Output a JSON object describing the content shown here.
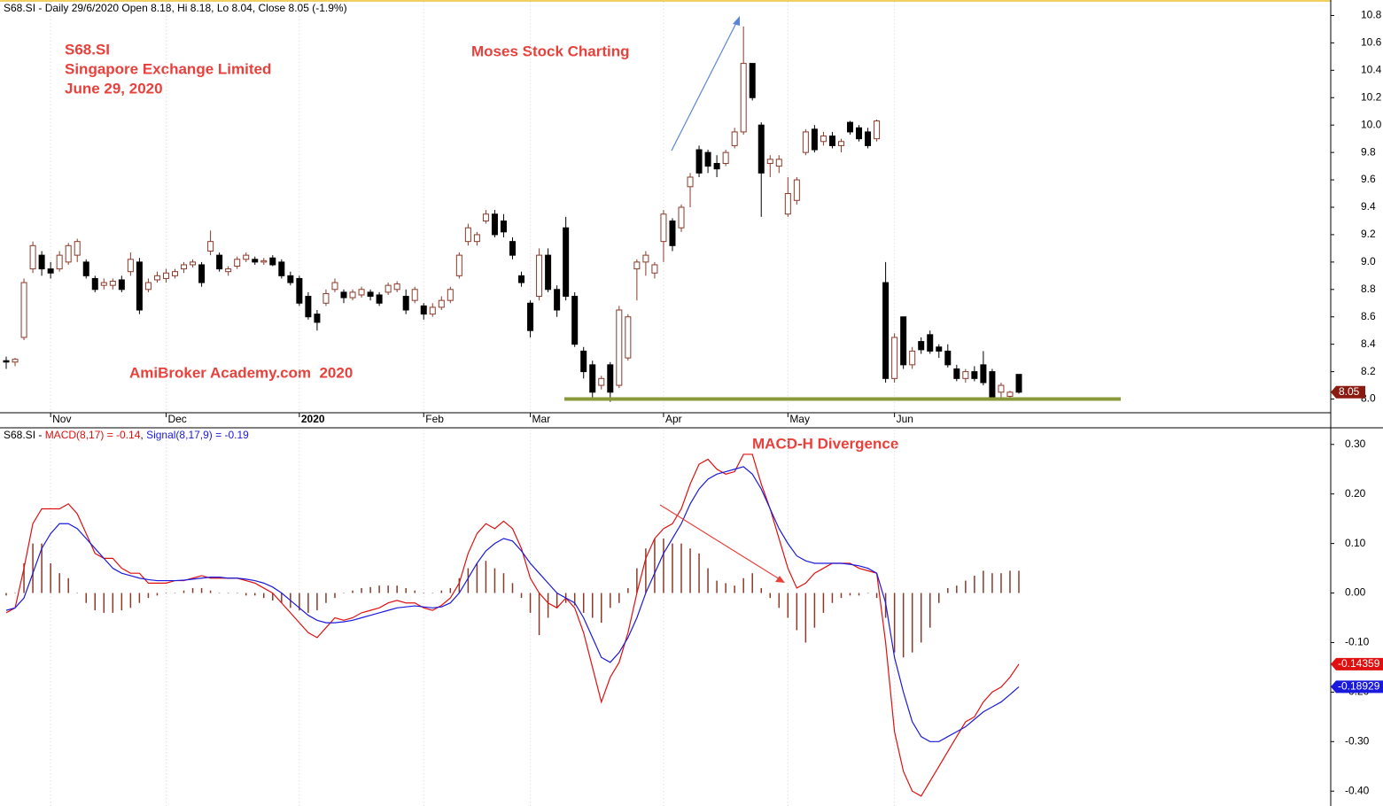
{
  "chart_data": [
    {
      "type": "candlestick",
      "title": "S68.SI - Daily 29/6/2020 Open 8.18, Hi 8.18, Lo 8.04, Close 8.05 (-1.9%)",
      "annotations": [
        "S68.SI",
        "Singapore Exchange Limited",
        "June 29, 2020",
        "Moses Stock Charting",
        "AmiBroker Academy.com  2020"
      ],
      "color_up": "#8b3a2a",
      "color_down": "#000000",
      "last_color": "#8b1a10",
      "ylim": [
        7.9,
        10.9
      ],
      "yticks": [
        {
          "value": 8,
          "label": "8.0"
        },
        8.2,
        8.4,
        8.6,
        8.8,
        {
          "value": 9,
          "label": "9.0"
        },
        9.2,
        9.4,
        9.6,
        9.8,
        {
          "value": 10,
          "label": "10.0"
        },
        10.2,
        10.4,
        10.6,
        10.8
      ],
      "xticks": [
        {
          "value": 5,
          "label": "Nov"
        },
        {
          "value": 18,
          "label": "Dec"
        },
        {
          "value": 33,
          "label": "2020",
          "bold": true
        },
        {
          "value": 47,
          "label": "Feb"
        },
        {
          "value": 59,
          "label": "Mar"
        },
        {
          "value": 74,
          "label": "Apr"
        },
        {
          "value": 88,
          "label": "May"
        },
        {
          "value": 100,
          "label": "Jun"
        }
      ],
      "ohlc": [
        [
          8.28,
          8.31,
          8.22,
          8.27
        ],
        [
          8.27,
          8.3,
          8.24,
          8.29
        ],
        [
          8.45,
          8.88,
          8.43,
          8.85
        ],
        [
          8.95,
          9.15,
          8.92,
          9.12
        ],
        [
          9.05,
          9.08,
          8.9,
          8.95
        ],
        [
          8.95,
          9.0,
          8.88,
          8.92
        ],
        [
          8.95,
          9.08,
          8.93,
          9.05
        ],
        [
          9.0,
          9.14,
          8.98,
          9.12
        ],
        [
          9.05,
          9.17,
          9.0,
          9.15
        ],
        [
          9.0,
          9.02,
          8.88,
          8.9
        ],
        [
          8.88,
          8.9,
          8.78,
          8.8
        ],
        [
          8.83,
          8.88,
          8.8,
          8.85
        ],
        [
          8.83,
          8.88,
          8.8,
          8.86
        ],
        [
          8.87,
          8.9,
          8.78,
          8.8
        ],
        [
          8.93,
          9.07,
          8.9,
          9.02
        ],
        [
          9.0,
          9.03,
          8.62,
          8.65
        ],
        [
          8.8,
          8.88,
          8.78,
          8.85
        ],
        [
          8.87,
          8.93,
          8.85,
          8.9
        ],
        [
          8.88,
          8.95,
          8.85,
          8.92
        ],
        [
          8.9,
          8.95,
          8.88,
          8.93
        ],
        [
          8.95,
          9.0,
          8.92,
          8.98
        ],
        [
          8.98,
          9.02,
          8.96,
          9.0
        ],
        [
          8.98,
          9.0,
          8.82,
          8.85
        ],
        [
          9.08,
          9.23,
          9.05,
          9.15
        ],
        [
          9.05,
          9.07,
          8.93,
          8.95
        ],
        [
          8.93,
          8.97,
          8.9,
          8.95
        ],
        [
          8.97,
          9.04,
          8.95,
          9.02
        ],
        [
          9.02,
          9.07,
          9.0,
          9.05
        ],
        [
          9.02,
          9.04,
          8.98,
          9.0
        ],
        [
          9.0,
          9.03,
          8.98,
          9.01
        ],
        [
          9.03,
          9.05,
          8.97,
          8.98
        ],
        [
          9.0,
          9.02,
          8.88,
          8.9
        ],
        [
          8.9,
          8.93,
          8.83,
          8.85
        ],
        [
          8.88,
          8.9,
          8.68,
          8.7
        ],
        [
          8.75,
          8.78,
          8.58,
          8.6
        ],
        [
          8.62,
          8.65,
          8.5,
          8.56
        ],
        [
          8.7,
          8.8,
          8.68,
          8.77
        ],
        [
          8.8,
          8.88,
          8.78,
          8.85
        ],
        [
          8.78,
          8.8,
          8.7,
          8.74
        ],
        [
          8.74,
          8.8,
          8.72,
          8.78
        ],
        [
          8.76,
          8.82,
          8.74,
          8.8
        ],
        [
          8.78,
          8.8,
          8.72,
          8.75
        ],
        [
          8.76,
          8.78,
          8.68,
          8.7
        ],
        [
          8.78,
          8.85,
          8.76,
          8.83
        ],
        [
          8.8,
          8.86,
          8.78,
          8.84
        ],
        [
          8.75,
          8.8,
          8.62,
          8.65
        ],
        [
          8.72,
          8.82,
          8.7,
          8.8
        ],
        [
          8.68,
          8.7,
          8.58,
          8.62
        ],
        [
          8.62,
          8.7,
          8.6,
          8.67
        ],
        [
          8.67,
          8.75,
          8.65,
          8.72
        ],
        [
          8.72,
          8.82,
          8.7,
          8.8
        ],
        [
          8.9,
          9.07,
          8.88,
          9.05
        ],
        [
          9.15,
          9.28,
          9.12,
          9.25
        ],
        [
          9.15,
          9.22,
          9.12,
          9.2
        ],
        [
          9.3,
          9.38,
          9.28,
          9.35
        ],
        [
          9.35,
          9.38,
          9.18,
          9.2
        ],
        [
          9.3,
          9.35,
          9.18,
          9.22
        ],
        [
          9.15,
          9.18,
          9.02,
          9.05
        ],
        [
          8.9,
          8.93,
          8.82,
          8.85
        ],
        [
          8.7,
          8.72,
          8.45,
          8.5
        ],
        [
          8.75,
          9.1,
          8.72,
          9.05
        ],
        [
          9.05,
          9.1,
          8.78,
          8.8
        ],
        [
          8.8,
          8.83,
          8.6,
          8.65
        ],
        [
          9.25,
          9.33,
          8.72,
          8.75
        ],
        [
          8.75,
          8.78,
          8.38,
          8.4
        ],
        [
          8.35,
          8.38,
          8.15,
          8.2
        ],
        [
          8.25,
          8.28,
          8.0,
          8.05
        ],
        [
          8.1,
          8.17,
          8.07,
          8.15
        ],
        [
          8.25,
          8.27,
          7.98,
          8.05
        ],
        [
          8.1,
          8.68,
          8.08,
          8.65
        ],
        [
          8.3,
          8.62,
          8.28,
          8.6
        ],
        [
          8.95,
          9.02,
          8.72,
          9.0
        ],
        [
          9.0,
          9.08,
          8.9,
          9.05
        ],
        [
          8.92,
          9.0,
          8.88,
          8.98
        ],
        [
          9.15,
          9.38,
          9.0,
          9.35
        ],
        [
          9.3,
          9.32,
          9.08,
          9.12
        ],
        [
          9.25,
          9.42,
          9.22,
          9.4
        ],
        [
          9.55,
          9.65,
          9.4,
          9.62
        ],
        [
          9.82,
          9.85,
          9.62,
          9.65
        ],
        [
          9.8,
          9.82,
          9.65,
          9.7
        ],
        [
          9.72,
          9.78,
          9.62,
          9.68
        ],
        [
          9.72,
          9.82,
          9.7,
          9.8
        ],
        [
          9.85,
          9.98,
          9.83,
          9.95
        ],
        [
          9.95,
          10.72,
          9.93,
          10.45
        ],
        [
          10.45,
          10.45,
          10.18,
          10.2
        ],
        [
          10.0,
          10.02,
          9.33,
          9.65
        ],
        [
          9.72,
          9.78,
          9.62,
          9.75
        ],
        [
          9.7,
          9.78,
          9.65,
          9.75
        ],
        [
          9.35,
          9.62,
          9.33,
          9.5
        ],
        [
          9.45,
          9.62,
          9.42,
          9.6
        ],
        [
          9.8,
          9.97,
          9.78,
          9.95
        ],
        [
          9.97,
          10.0,
          9.8,
          9.82
        ],
        [
          9.88,
          9.95,
          9.85,
          9.92
        ],
        [
          9.92,
          9.95,
          9.83,
          9.85
        ],
        [
          9.85,
          9.9,
          9.8,
          9.88
        ],
        [
          10.02,
          10.03,
          9.93,
          9.95
        ],
        [
          9.98,
          10.0,
          9.88,
          9.9
        ],
        [
          9.95,
          9.98,
          9.83,
          9.85
        ],
        [
          9.9,
          10.04,
          9.88,
          10.03
        ],
        [
          8.85,
          9.0,
          8.12,
          8.15
        ],
        [
          8.15,
          8.48,
          8.12,
          8.45
        ],
        [
          8.6,
          8.6,
          8.22,
          8.25
        ],
        [
          8.25,
          8.38,
          8.22,
          8.35
        ],
        [
          8.42,
          8.45,
          8.33,
          8.36
        ],
        [
          8.47,
          8.5,
          8.33,
          8.35
        ],
        [
          8.38,
          8.4,
          8.3,
          8.35
        ],
        [
          8.35,
          8.4,
          8.23,
          8.25
        ],
        [
          8.22,
          8.25,
          8.13,
          8.15
        ],
        [
          8.15,
          8.22,
          8.12,
          8.2
        ],
        [
          8.2,
          8.24,
          8.13,
          8.15
        ],
        [
          8.25,
          8.35,
          8.1,
          8.12
        ],
        [
          8.2,
          8.22,
          7.99,
          8.0
        ],
        [
          8.05,
          8.12,
          8.0,
          8.1
        ],
        [
          8.02,
          8.06,
          8.0,
          8.05
        ],
        [
          8.18,
          8.18,
          8.04,
          8.05
        ]
      ]
    },
    {
      "type": "macd",
      "title_parts": [
        {
          "text": "S68.SI - ",
          "color": "#000000"
        },
        {
          "text": "MACD(8,17) = -0.14",
          "color": "#e01010"
        },
        {
          "text": ", ",
          "color": "#000000"
        },
        {
          "text": "Signal(8,17,9) = -0.19",
          "color": "#1a1adc"
        }
      ],
      "annotation": "MACD-H Divergence",
      "ylim": [
        -0.43,
        0.33
      ],
      "yticks": [
        {
          "value": 0.3,
          "label": "0.30"
        },
        {
          "value": 0.2,
          "label": "0.20"
        },
        {
          "value": 0.1,
          "label": "0.10"
        },
        {
          "value": 0,
          "label": "0.00"
        },
        {
          "value": -0.1,
          "label": "-0.10"
        },
        {
          "value": -0.2,
          "label": "-0.20"
        },
        {
          "value": -0.3,
          "label": "-0.30"
        },
        {
          "value": -0.4,
          "label": "-0.40"
        }
      ],
      "histogram": {
        "color": "#8b3a2a",
        "values": [
          -0.005,
          0,
          0.06,
          0.1,
          0.1,
          0.06,
          0.04,
          0.03,
          0,
          -0.02,
          -0.035,
          -0.04,
          -0.04,
          -0.035,
          -0.03,
          -0.02,
          -0.01,
          -0.005,
          0,
          0,
          0.005,
          0.01,
          0.01,
          0.005,
          0,
          0,
          0,
          -0.005,
          -0.005,
          -0.01,
          -0.015,
          -0.02,
          -0.03,
          -0.035,
          -0.04,
          -0.035,
          -0.02,
          -0.01,
          0,
          0.005,
          0.01,
          0.012,
          0.015,
          0.015,
          0.015,
          0.01,
          0.005,
          0,
          0,
          0.005,
          0.01,
          0.03,
          0.05,
          0.06,
          0.065,
          0.05,
          0.04,
          0.02,
          -0.01,
          -0.04,
          -0.085,
          -0.05,
          -0.03,
          -0.02,
          -0.025,
          -0.04,
          -0.05,
          -0.06,
          -0.03,
          -0.02,
          0.01,
          0.05,
          0.09,
          0.11,
          0.11,
          0.1,
          0.1,
          0.09,
          0.08,
          0.05,
          0.025,
          0.02,
          0.015,
          0.03,
          0.04,
          0.01,
          -0.01,
          -0.03,
          -0.05,
          -0.075,
          -0.1,
          -0.07,
          -0.04,
          -0.02,
          -0.01,
          -0.005,
          -0.005,
          0,
          -0.01,
          -0.05,
          -0.12,
          -0.13,
          -0.12,
          -0.1,
          -0.07,
          -0.02,
          0.01,
          0.015,
          0.025,
          0.035,
          0.045,
          0.04,
          0.04,
          0.045,
          0.045
        ]
      },
      "series": [
        {
          "color": "#e01010",
          "values": [
            -0.04,
            -0.03,
            0.05,
            0.14,
            0.17,
            0.17,
            0.17,
            0.18,
            0.16,
            0.12,
            0.08,
            0.07,
            0.07,
            0.05,
            0.04,
            0.04,
            0.02,
            0.02,
            0.02,
            0.025,
            0.025,
            0.03,
            0.035,
            0.03,
            0.03,
            0.03,
            0.03,
            0.025,
            0.02,
            0.01,
            0,
            -0.02,
            -0.04,
            -0.06,
            -0.08,
            -0.09,
            -0.07,
            -0.05,
            -0.055,
            -0.05,
            -0.04,
            -0.035,
            -0.03,
            -0.02,
            -0.015,
            -0.02,
            -0.02,
            -0.03,
            -0.035,
            -0.025,
            -0.01,
            0.02,
            0.08,
            0.12,
            0.14,
            0.13,
            0.145,
            0.13,
            0.09,
            0.03,
            0,
            -0.02,
            -0.03,
            -0.01,
            -0.03,
            -0.08,
            -0.15,
            -0.22,
            -0.17,
            -0.14,
            -0.08,
            0,
            0.07,
            0.11,
            0.13,
            0.14,
            0.17,
            0.22,
            0.26,
            0.27,
            0.25,
            0.24,
            0.245,
            0.28,
            0.28,
            0.22,
            0.17,
            0.11,
            0.05,
            0.01,
            0.02,
            0.04,
            0.05,
            0.06,
            0.06,
            0.06,
            0.05,
            0.045,
            0.04,
            -0.1,
            -0.28,
            -0.36,
            -0.4,
            -0.41,
            -0.38,
            -0.35,
            -0.32,
            -0.29,
            -0.26,
            -0.25,
            -0.22,
            -0.2,
            -0.19,
            -0.17,
            -0.14359
          ]
        },
        {
          "color": "#1a1adc",
          "values": [
            -0.035,
            -0.03,
            -0.01,
            0.04,
            0.09,
            0.12,
            0.14,
            0.14,
            0.13,
            0.11,
            0.09,
            0.07,
            0.05,
            0.04,
            0.035,
            0.03,
            0.027,
            0.025,
            0.025,
            0.025,
            0.026,
            0.028,
            0.03,
            0.032,
            0.032,
            0.03,
            0.03,
            0.028,
            0.025,
            0.02,
            0.012,
            0,
            -0.015,
            -0.03,
            -0.045,
            -0.055,
            -0.06,
            -0.06,
            -0.058,
            -0.055,
            -0.05,
            -0.045,
            -0.04,
            -0.035,
            -0.03,
            -0.028,
            -0.026,
            -0.028,
            -0.03,
            -0.028,
            -0.02,
            0,
            0.03,
            0.06,
            0.085,
            0.1,
            0.11,
            0.105,
            0.085,
            0.06,
            0.04,
            0.02,
            0,
            -0.01,
            -0.02,
            -0.05,
            -0.09,
            -0.13,
            -0.14,
            -0.12,
            -0.09,
            -0.05,
            0,
            0.04,
            0.08,
            0.11,
            0.14,
            0.18,
            0.21,
            0.23,
            0.24,
            0.245,
            0.25,
            0.255,
            0.24,
            0.21,
            0.17,
            0.13,
            0.1,
            0.075,
            0.065,
            0.06,
            0.06,
            0.06,
            0.06,
            0.058,
            0.055,
            0.05,
            0.04,
            -0.02,
            -0.13,
            -0.2,
            -0.26,
            -0.29,
            -0.3,
            -0.3,
            -0.29,
            -0.28,
            -0.27,
            -0.255,
            -0.24,
            -0.23,
            -0.22,
            -0.205,
            -0.18929
          ]
        }
      ]
    }
  ]
}
